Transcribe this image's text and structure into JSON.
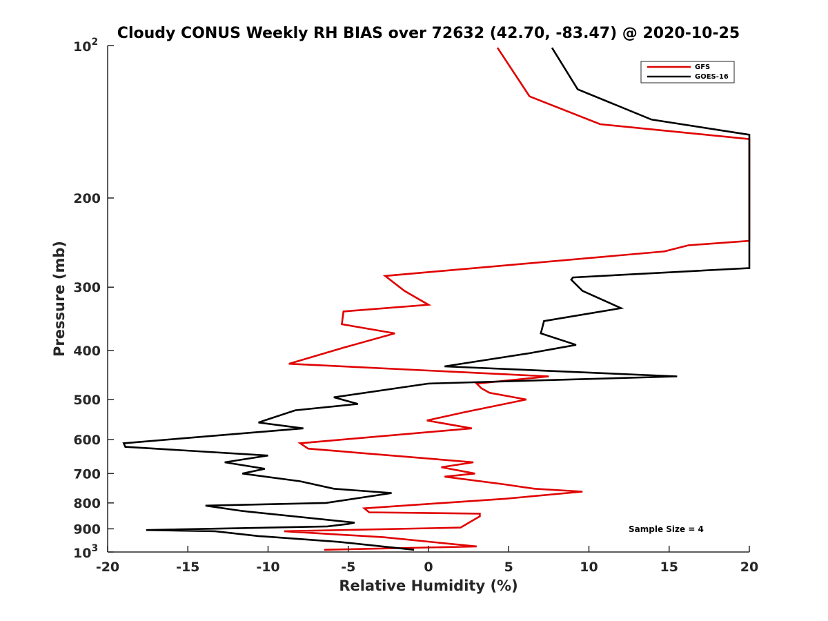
{
  "chart_data": {
    "type": "line",
    "title": "Cloudy CONUS Weekly RH BIAS over 72632 (42.70, -83.47) @ 2020-10-25",
    "xlabel": "Relative Humidity (%)",
    "ylabel": "Pressure (mb)",
    "xlim": [
      -20,
      20
    ],
    "ylim": [
      100,
      1000
    ],
    "yscale": "log",
    "y_reversed": true,
    "x_ticks": [
      "-20",
      "-15",
      "-10",
      "-5",
      "0",
      "5",
      "10",
      "15",
      "20"
    ],
    "y_ticks": [
      {
        "value": 100,
        "base": "10",
        "exp": "2"
      },
      {
        "value": 200,
        "label": "200"
      },
      {
        "value": 300,
        "label": "300"
      },
      {
        "value": 400,
        "label": "400"
      },
      {
        "value": 500,
        "label": "500"
      },
      {
        "value": 600,
        "label": "600"
      },
      {
        "value": 700,
        "label": "700"
      },
      {
        "value": 800,
        "label": "800"
      },
      {
        "value": 900,
        "label": "900"
      },
      {
        "value": 1000,
        "base": "10",
        "exp": "3"
      }
    ],
    "grid": false,
    "legend_position": "top-right",
    "annotation": "Sample Size = 4",
    "series": [
      {
        "name": "GFS",
        "color": "#e00000",
        "x": [
          -6.5,
          3.0,
          -2.8,
          -9.0,
          2.0,
          3.2,
          3.2,
          -3.7,
          -4.0,
          4.8,
          9.6,
          6.6,
          4.7,
          1.0,
          2.9,
          0.8,
          2.8,
          -7.5,
          -8.0,
          2.7,
          -0.1,
          2.2,
          6.1,
          3.8,
          3.3,
          3.0,
          7.5,
          -8.7,
          -5.3,
          -2.1,
          -5.4,
          -5.3,
          0.0,
          -1.5,
          -2.7,
          14.7,
          16.2,
          20.0,
          20.0,
          10.7,
          6.3,
          4.3
        ],
        "y": [
          990,
          975,
          935,
          910,
          895,
          850,
          840,
          835,
          820,
          785,
          760,
          750,
          735,
          710,
          700,
          680,
          665,
          625,
          610,
          570,
          550,
          530,
          500,
          485,
          475,
          465,
          450,
          425,
          395,
          370,
          355,
          335,
          325,
          305,
          285,
          255,
          248,
          243,
          153,
          143,
          126,
          101
        ]
      },
      {
        "name": "GOES-16",
        "color": "#000000",
        "x": [
          -0.9,
          -5.6,
          -10.6,
          -13.3,
          -17.6,
          -6.3,
          -5.0,
          -4.6,
          -11.6,
          -13.9,
          -6.4,
          -2.3,
          -5.9,
          -8.0,
          -11.6,
          -10.2,
          -12.7,
          -10.0,
          -18.9,
          -19.0,
          -7.8,
          -10.6,
          -8.3,
          -4.4,
          -5.9,
          0.0,
          15.5,
          1.0,
          6.3,
          9.2,
          7.0,
          7.2,
          12.0,
          9.6,
          8.9,
          9.0,
          20.0,
          20.0,
          13.9,
          9.3,
          7.7
        ],
        "y": [
          990,
          955,
          930,
          910,
          905,
          890,
          880,
          875,
          830,
          810,
          800,
          765,
          750,
          725,
          700,
          685,
          665,
          645,
          620,
          610,
          570,
          555,
          525,
          510,
          495,
          465,
          450,
          430,
          405,
          390,
          370,
          350,
          330,
          305,
          290,
          287,
          275,
          150,
          140,
          122,
          101
        ]
      }
    ]
  }
}
